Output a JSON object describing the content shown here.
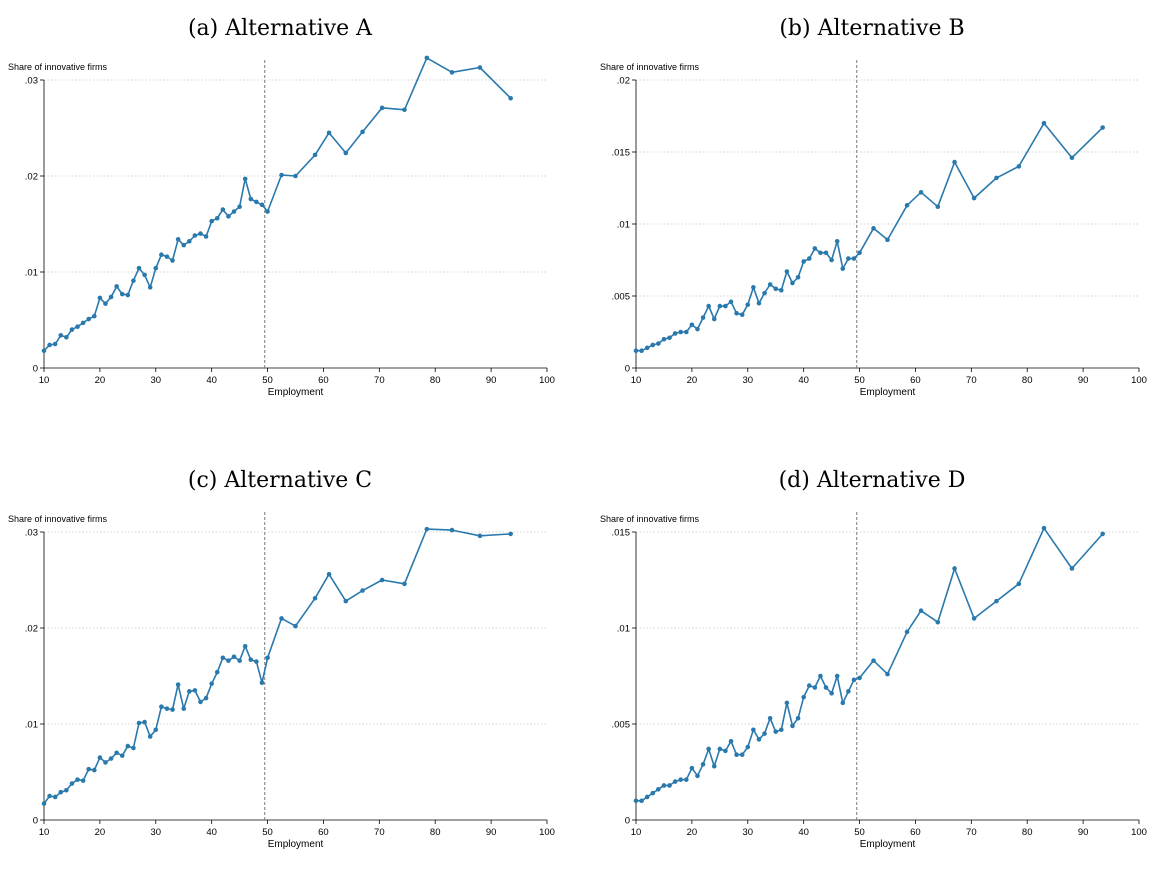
{
  "chart_data": [
    {
      "type": "line",
      "title": "(a) Alternative A",
      "xlabel": "Employment",
      "ylabel": "Share of innovative firms",
      "xlim": [
        10,
        100
      ],
      "ylim": [
        0,
        0.03
      ],
      "xticks": [
        10,
        20,
        30,
        40,
        50,
        60,
        70,
        80,
        90,
        100
      ],
      "yticks": [
        0,
        0.01,
        0.02,
        0.03
      ],
      "ytick_labels": [
        "0",
        ".01",
        ".02",
        ".03"
      ],
      "threshold_x": 49.5,
      "grid": "horizontal dotted",
      "x": [
        10,
        11,
        12,
        13,
        14,
        15,
        16,
        17,
        18,
        19,
        20,
        21,
        22,
        23,
        24,
        25,
        26,
        27,
        28,
        29,
        30,
        31,
        32,
        33,
        34,
        35,
        36,
        37,
        38,
        39,
        40,
        41,
        42,
        43,
        44,
        45,
        46,
        47,
        48,
        49,
        50,
        52.5,
        55,
        58.5,
        61,
        64,
        67,
        70.5,
        74.5,
        78.5,
        83,
        88,
        93.5
      ],
      "y": [
        0.0018,
        0.0024,
        0.0025,
        0.0034,
        0.0032,
        0.004,
        0.0043,
        0.0047,
        0.0051,
        0.0054,
        0.0073,
        0.0067,
        0.0074,
        0.0085,
        0.0077,
        0.0076,
        0.0091,
        0.0104,
        0.0097,
        0.0084,
        0.0104,
        0.0118,
        0.0116,
        0.0112,
        0.0134,
        0.0128,
        0.0132,
        0.0138,
        0.014,
        0.0137,
        0.0153,
        0.0156,
        0.0165,
        0.0158,
        0.0163,
        0.0168,
        0.0197,
        0.0176,
        0.0173,
        0.017,
        0.0163,
        0.0201,
        0.02,
        0.0222,
        0.0245,
        0.0224,
        0.0246,
        0.0271,
        0.0269,
        0.0323,
        0.0308,
        0.0313,
        0.0281
      ]
    },
    {
      "type": "line",
      "title": "(b) Alternative B",
      "xlabel": "Employment",
      "ylabel": "Share of innovative firms",
      "xlim": [
        10,
        100
      ],
      "ylim": [
        0,
        0.02
      ],
      "xticks": [
        10,
        20,
        30,
        40,
        50,
        60,
        70,
        80,
        90,
        100
      ],
      "yticks": [
        0,
        0.005,
        0.01,
        0.015,
        0.02
      ],
      "ytick_labels": [
        "0",
        ".005",
        ".01",
        ".015",
        ".02"
      ],
      "threshold_x": 49.5,
      "grid": "horizontal dotted",
      "x": [
        10,
        11,
        12,
        13,
        14,
        15,
        16,
        17,
        18,
        19,
        20,
        21,
        22,
        23,
        24,
        25,
        26,
        27,
        28,
        29,
        30,
        31,
        32,
        33,
        34,
        35,
        36,
        37,
        38,
        39,
        40,
        41,
        42,
        43,
        44,
        45,
        46,
        47,
        48,
        49,
        50,
        52.5,
        55,
        58.5,
        61,
        64,
        67,
        70.5,
        74.5,
        78.5,
        83,
        88,
        93.5
      ],
      "y": [
        0.0012,
        0.0012,
        0.0014,
        0.0016,
        0.0017,
        0.002,
        0.0021,
        0.0024,
        0.0025,
        0.0025,
        0.003,
        0.0027,
        0.0035,
        0.0043,
        0.0034,
        0.0043,
        0.0043,
        0.0046,
        0.0038,
        0.0037,
        0.0044,
        0.0056,
        0.0045,
        0.0052,
        0.0058,
        0.0055,
        0.0054,
        0.0067,
        0.0059,
        0.0063,
        0.0074,
        0.0076,
        0.0083,
        0.008,
        0.008,
        0.0075,
        0.0088,
        0.0069,
        0.0076,
        0.0076,
        0.008,
        0.0097,
        0.0089,
        0.0113,
        0.0122,
        0.0112,
        0.0143,
        0.0118,
        0.0132,
        0.014,
        0.017,
        0.0146,
        0.0167
      ]
    },
    {
      "type": "line",
      "title": "(c) Alternative C",
      "xlabel": "Employment",
      "ylabel": "Share of innovative firms",
      "xlim": [
        10,
        100
      ],
      "ylim": [
        0,
        0.03
      ],
      "xticks": [
        10,
        20,
        30,
        40,
        50,
        60,
        70,
        80,
        90,
        100
      ],
      "yticks": [
        0,
        0.01,
        0.02,
        0.03
      ],
      "ytick_labels": [
        "0",
        ".01",
        ".02",
        ".03"
      ],
      "threshold_x": 49.5,
      "grid": "horizontal dotted",
      "x": [
        10,
        11,
        12,
        13,
        14,
        15,
        16,
        17,
        18,
        19,
        20,
        21,
        22,
        23,
        24,
        25,
        26,
        27,
        28,
        29,
        30,
        31,
        32,
        33,
        34,
        35,
        36,
        37,
        38,
        39,
        40,
        41,
        42,
        43,
        44,
        45,
        46,
        47,
        48,
        49,
        50,
        52.5,
        55,
        58.5,
        61,
        64,
        67,
        70.5,
        74.5,
        78.5,
        83,
        88,
        93.5
      ],
      "y": [
        0.0017,
        0.0025,
        0.0024,
        0.0029,
        0.0031,
        0.0038,
        0.0042,
        0.0041,
        0.0053,
        0.0052,
        0.0065,
        0.006,
        0.0064,
        0.007,
        0.0067,
        0.0077,
        0.0075,
        0.0101,
        0.0102,
        0.0087,
        0.0094,
        0.0118,
        0.0116,
        0.0115,
        0.0141,
        0.0116,
        0.0134,
        0.0135,
        0.0123,
        0.0127,
        0.0142,
        0.0154,
        0.0169,
        0.0166,
        0.017,
        0.0166,
        0.0181,
        0.0167,
        0.0165,
        0.0143,
        0.0169,
        0.021,
        0.0202,
        0.0231,
        0.0256,
        0.0228,
        0.0239,
        0.025,
        0.0246,
        0.0303,
        0.0302,
        0.0296,
        0.0298
      ]
    },
    {
      "type": "line",
      "title": "(d) Alternative D",
      "xlabel": "Employment",
      "ylabel": "Share of innovative firms",
      "xlim": [
        10,
        100
      ],
      "ylim": [
        0,
        0.015
      ],
      "xticks": [
        10,
        20,
        30,
        40,
        50,
        60,
        70,
        80,
        90,
        100
      ],
      "yticks": [
        0,
        0.005,
        0.01,
        0.015
      ],
      "ytick_labels": [
        "0",
        ".005",
        ".01",
        ".015"
      ],
      "threshold_x": 49.5,
      "grid": "horizontal dotted",
      "x": [
        10,
        11,
        12,
        13,
        14,
        15,
        16,
        17,
        18,
        19,
        20,
        21,
        22,
        23,
        24,
        25,
        26,
        27,
        28,
        29,
        30,
        31,
        32,
        33,
        34,
        35,
        36,
        37,
        38,
        39,
        40,
        41,
        42,
        43,
        44,
        45,
        46,
        47,
        48,
        49,
        50,
        52.5,
        55,
        58.5,
        61,
        64,
        67,
        70.5,
        74.5,
        78.5,
        83,
        88,
        93.5
      ],
      "y": [
        0.001,
        0.001,
        0.0012,
        0.0014,
        0.0016,
        0.0018,
        0.0018,
        0.002,
        0.0021,
        0.0021,
        0.0027,
        0.0023,
        0.0029,
        0.0037,
        0.0028,
        0.0037,
        0.0036,
        0.0041,
        0.0034,
        0.0034,
        0.0038,
        0.0047,
        0.0042,
        0.0045,
        0.0053,
        0.0046,
        0.0047,
        0.0061,
        0.0049,
        0.0053,
        0.0064,
        0.007,
        0.0069,
        0.0075,
        0.0069,
        0.0066,
        0.0075,
        0.0061,
        0.0067,
        0.0073,
        0.0074,
        0.0083,
        0.0076,
        0.0098,
        0.0109,
        0.0103,
        0.0131,
        0.0105,
        0.0114,
        0.0123,
        0.0152,
        0.0131,
        0.0149
      ]
    }
  ],
  "colors": {
    "line": "#2a79ad",
    "grid": "#c8c8c8",
    "axis": "#000000",
    "threshold": "#777777"
  }
}
